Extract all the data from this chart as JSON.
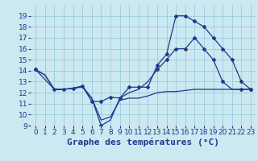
{
  "background_color": "#cce8f0",
  "grid_color": "#99cce0",
  "line_color": "#1a3a8c",
  "xlabel": "Graphe des températures (°C)",
  "tick_fontsize": 6.5,
  "xlabel_fontsize": 8,
  "ylim": [
    9,
    20
  ],
  "xlim": [
    -0.5,
    23.5
  ],
  "yticks": [
    9,
    10,
    11,
    12,
    13,
    14,
    15,
    16,
    17,
    18,
    19
  ],
  "xticks": [
    0,
    1,
    2,
    3,
    4,
    5,
    6,
    7,
    8,
    9,
    10,
    11,
    12,
    13,
    14,
    15,
    16,
    17,
    18,
    19,
    20,
    21,
    22,
    23
  ],
  "s1_x": [
    0,
    1,
    2,
    3,
    4,
    5,
    6,
    7,
    8,
    9,
    10,
    11,
    12,
    13,
    14,
    15,
    16,
    17,
    18,
    19,
    20,
    21,
    22,
    23
  ],
  "s1_y": [
    14.1,
    13.6,
    12.3,
    12.3,
    12.4,
    12.5,
    11.5,
    9.5,
    9.8,
    11.3,
    11.5,
    11.5,
    11.7,
    12.0,
    12.1,
    12.1,
    12.2,
    12.3,
    12.3,
    12.3,
    12.3,
    12.3,
    12.3,
    12.3
  ],
  "s2_x": [
    0,
    1,
    2,
    3,
    4,
    5,
    6,
    7,
    8,
    9,
    10,
    11,
    12,
    13,
    14,
    15,
    16,
    17,
    18,
    19,
    20,
    21,
    22,
    23
  ],
  "s2_y": [
    14.1,
    13.6,
    12.3,
    12.3,
    12.4,
    12.6,
    11.5,
    9.0,
    9.5,
    11.5,
    12.0,
    12.3,
    13.0,
    14.1,
    15.0,
    16.0,
    16.0,
    17.0,
    16.0,
    15.0,
    13.0,
    12.3,
    12.3,
    12.3
  ],
  "s3_x": [
    0,
    2,
    3,
    4,
    5,
    6,
    7,
    8,
    9,
    10,
    11,
    12,
    13,
    14,
    15,
    16,
    17,
    18,
    19,
    20,
    21,
    22,
    23
  ],
  "s3_y": [
    14.1,
    12.3,
    12.3,
    12.4,
    12.6,
    11.2,
    11.2,
    11.6,
    11.5,
    12.5,
    12.5,
    12.5,
    14.5,
    15.5,
    19.0,
    19.0,
    18.5,
    18.0,
    17.0,
    16.0,
    15.0,
    13.0,
    12.3
  ]
}
